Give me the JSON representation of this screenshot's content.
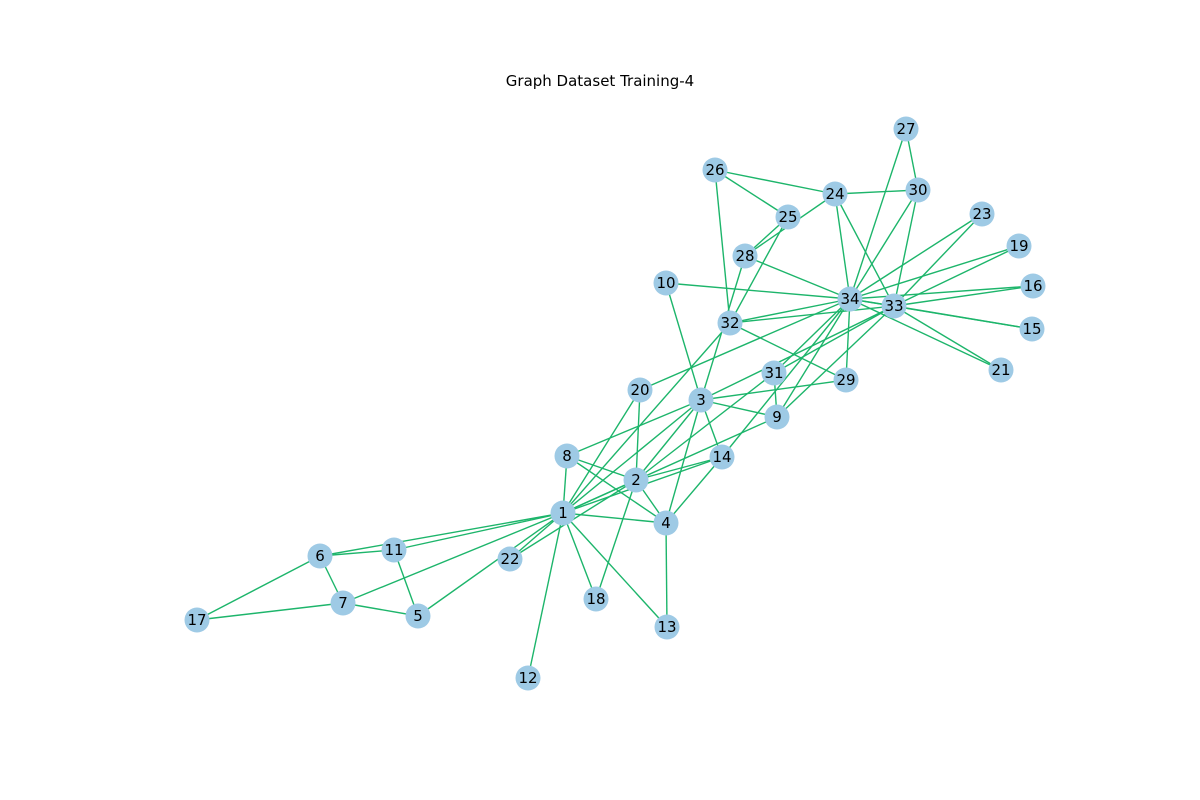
{
  "title": "Graph Dataset Training-4",
  "colors": {
    "edge": "#1db56b",
    "node": "#9ecae5",
    "label": "#000000"
  },
  "nodes": [
    "1",
    "2",
    "3",
    "4",
    "5",
    "6",
    "7",
    "8",
    "9",
    "10",
    "11",
    "12",
    "13",
    "14",
    "15",
    "16",
    "17",
    "18",
    "19",
    "20",
    "21",
    "22",
    "23",
    "24",
    "25",
    "26",
    "27",
    "28",
    "29",
    "30",
    "31",
    "32",
    "33",
    "34"
  ],
  "edges": [
    [
      "1",
      "2"
    ],
    [
      "1",
      "3"
    ],
    [
      "1",
      "4"
    ],
    [
      "1",
      "5"
    ],
    [
      "1",
      "6"
    ],
    [
      "1",
      "7"
    ],
    [
      "1",
      "8"
    ],
    [
      "1",
      "9"
    ],
    [
      "1",
      "11"
    ],
    [
      "1",
      "12"
    ],
    [
      "1",
      "13"
    ],
    [
      "1",
      "14"
    ],
    [
      "1",
      "18"
    ],
    [
      "1",
      "20"
    ],
    [
      "1",
      "22"
    ],
    [
      "1",
      "32"
    ],
    [
      "2",
      "3"
    ],
    [
      "2",
      "4"
    ],
    [
      "2",
      "8"
    ],
    [
      "2",
      "14"
    ],
    [
      "2",
      "18"
    ],
    [
      "2",
      "20"
    ],
    [
      "2",
      "22"
    ],
    [
      "2",
      "31"
    ],
    [
      "3",
      "4"
    ],
    [
      "3",
      "8"
    ],
    [
      "3",
      "9"
    ],
    [
      "3",
      "10"
    ],
    [
      "3",
      "14"
    ],
    [
      "3",
      "28"
    ],
    [
      "3",
      "29"
    ],
    [
      "3",
      "33"
    ],
    [
      "4",
      "8"
    ],
    [
      "4",
      "13"
    ],
    [
      "4",
      "14"
    ],
    [
      "5",
      "7"
    ],
    [
      "5",
      "11"
    ],
    [
      "6",
      "7"
    ],
    [
      "6",
      "11"
    ],
    [
      "6",
      "17"
    ],
    [
      "7",
      "17"
    ],
    [
      "9",
      "31"
    ],
    [
      "9",
      "33"
    ],
    [
      "9",
      "34"
    ],
    [
      "10",
      "34"
    ],
    [
      "14",
      "34"
    ],
    [
      "15",
      "33"
    ],
    [
      "15",
      "34"
    ],
    [
      "16",
      "33"
    ],
    [
      "16",
      "34"
    ],
    [
      "19",
      "33"
    ],
    [
      "19",
      "34"
    ],
    [
      "20",
      "34"
    ],
    [
      "21",
      "33"
    ],
    [
      "21",
      "34"
    ],
    [
      "23",
      "33"
    ],
    [
      "23",
      "34"
    ],
    [
      "24",
      "26"
    ],
    [
      "24",
      "28"
    ],
    [
      "24",
      "30"
    ],
    [
      "24",
      "33"
    ],
    [
      "24",
      "34"
    ],
    [
      "25",
      "26"
    ],
    [
      "25",
      "28"
    ],
    [
      "25",
      "32"
    ],
    [
      "26",
      "32"
    ],
    [
      "27",
      "30"
    ],
    [
      "27",
      "34"
    ],
    [
      "28",
      "34"
    ],
    [
      "29",
      "32"
    ],
    [
      "29",
      "34"
    ],
    [
      "30",
      "33"
    ],
    [
      "30",
      "34"
    ],
    [
      "31",
      "33"
    ],
    [
      "31",
      "34"
    ],
    [
      "32",
      "33"
    ],
    [
      "32",
      "34"
    ],
    [
      "33",
      "34"
    ]
  ]
}
